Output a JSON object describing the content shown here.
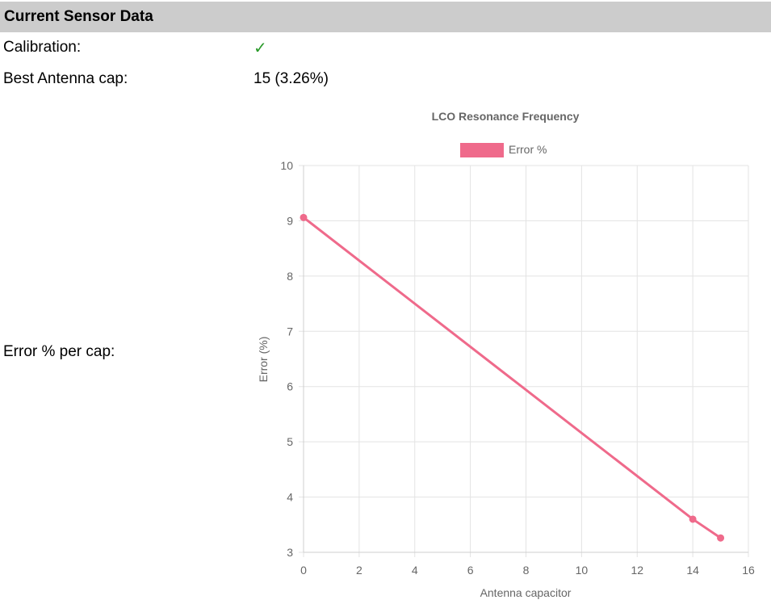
{
  "header": {
    "title": "Current Sensor Data"
  },
  "rows": {
    "calibration": {
      "label": "Calibration:",
      "value": "✓"
    },
    "best_cap": {
      "label": "Best Antenna cap:",
      "value": "15 (3.26%)"
    },
    "error_per_cap": {
      "label": "Error % per cap:"
    }
  },
  "colors": {
    "header_bg": "#cccccc",
    "check": "#2a9a2a",
    "series": "#ef6a8b",
    "grid": "#e3e3e3",
    "axis_text": "#666666"
  },
  "chart_data": {
    "type": "line",
    "title": "LCO Resonance Frequency",
    "xlabel": "Antenna capacitor",
    "ylabel": "Error (%)",
    "xlim": [
      0,
      16
    ],
    "ylim": [
      3,
      10
    ],
    "x_ticks": [
      0,
      2,
      4,
      6,
      8,
      10,
      12,
      14,
      16
    ],
    "y_ticks": [
      3,
      4,
      5,
      6,
      7,
      8,
      9,
      10
    ],
    "legend_position": "top",
    "grid": true,
    "series": [
      {
        "name": "Error %",
        "points": [
          {
            "x": 0,
            "y": 9.06
          },
          {
            "x": 14,
            "y": 3.6
          },
          {
            "x": 15,
            "y": 3.26
          }
        ]
      }
    ]
  }
}
